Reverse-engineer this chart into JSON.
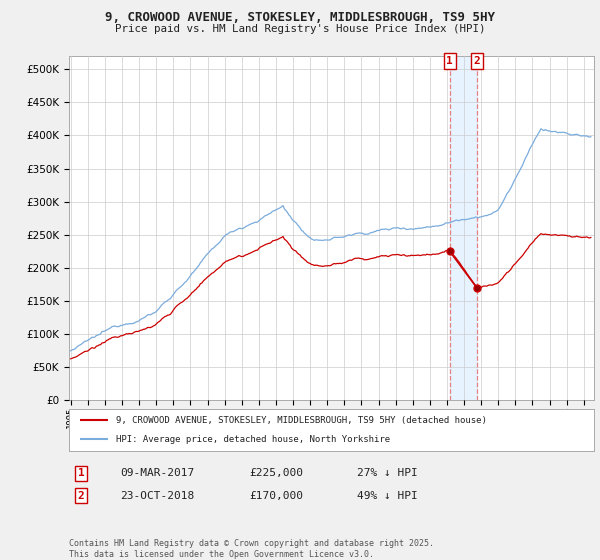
{
  "title1": "9, CROWOOD AVENUE, STOKESLEY, MIDDLESBROUGH, TS9 5HY",
  "title2": "Price paid vs. HM Land Registry's House Price Index (HPI)",
  "background_color": "#f0f0f0",
  "plot_bg_color": "#ffffff",
  "hpi_color": "#7aacdc",
  "price_color": "#cc0000",
  "grid_color": "#cccccc",
  "dashed_color": "#e88080",
  "shade_color": "#ddeeff",
  "legend_label_red": "9, CROWOOD AVENUE, STOKESLEY, MIDDLESBROUGH, TS9 5HY (detached house)",
  "legend_label_blue": "HPI: Average price, detached house, North Yorkshire",
  "transaction1_date": "09-MAR-2017",
  "transaction1_price": 225000,
  "transaction1_info": "27% ↓ HPI",
  "transaction2_date": "23-OCT-2018",
  "transaction2_price": 170000,
  "transaction2_info": "49% ↓ HPI",
  "footnote": "Contains HM Land Registry data © Crown copyright and database right 2025.\nThis data is licensed under the Open Government Licence v3.0.",
  "ylim": [
    0,
    520000
  ],
  "yticks": [
    0,
    50000,
    100000,
    150000,
    200000,
    250000,
    300000,
    350000,
    400000,
    450000,
    500000
  ],
  "start_year": 1995,
  "end_year": 2025
}
